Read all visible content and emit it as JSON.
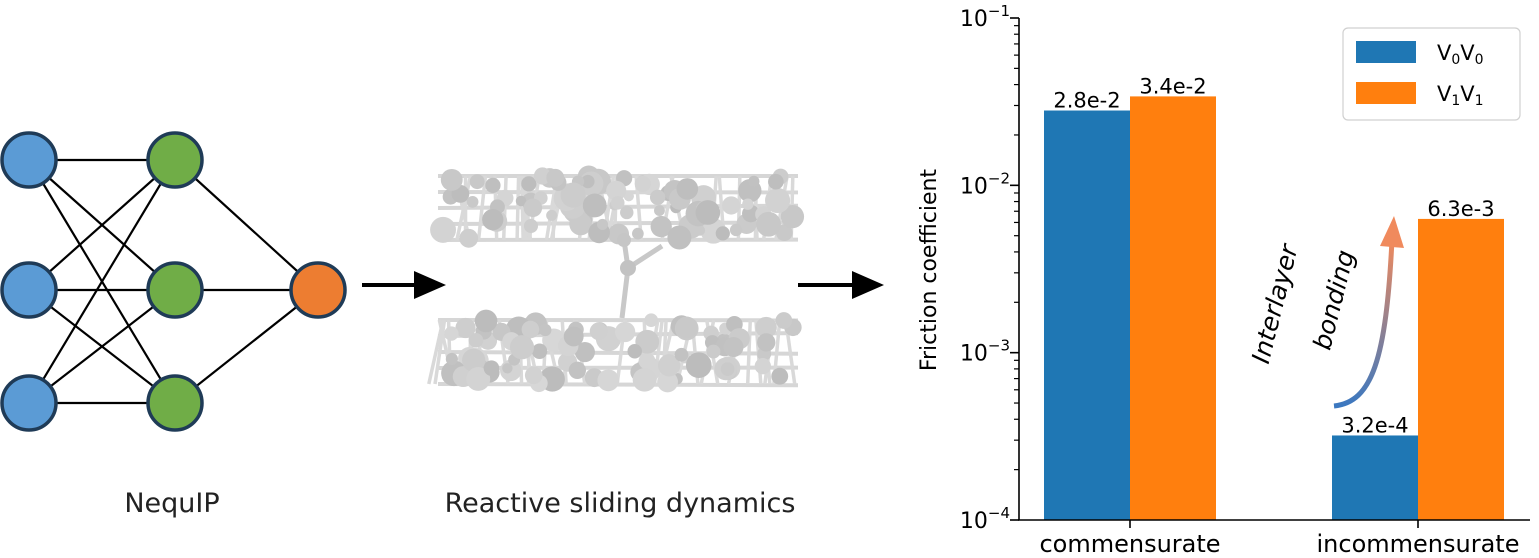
{
  "network": {
    "caption": "NequIP",
    "layers": [
      3,
      3,
      1
    ],
    "colors": {
      "input": "#5b9bd5",
      "hidden": "#70ad47",
      "output": "#ed7d31",
      "stroke": "#1f3b57"
    }
  },
  "simulation": {
    "caption": "Reactive sliding dynamics"
  },
  "annotation": {
    "line1": "Interlayer",
    "line2": "bonding"
  },
  "chart_data": {
    "type": "bar",
    "log_scale": true,
    "categories": [
      "commensurate",
      "incommensurate"
    ],
    "series": [
      {
        "name": "V0V0",
        "name_main": "V",
        "name_sub": "0",
        "color": "#1f77b4",
        "values": [
          0.028,
          0.00032
        ],
        "labels": [
          "2.8e-2",
          "3.2e-4"
        ]
      },
      {
        "name": "V1V1",
        "name_main": "V",
        "name_sub": "1",
        "color": "#ff7f0e",
        "values": [
          0.034,
          0.0063
        ],
        "labels": [
          "3.4e-2",
          "6.3e-3"
        ]
      }
    ],
    "ylabel": "Friction coefficient",
    "xlabel": "",
    "ylim": [
      0.0001,
      0.1
    ],
    "yticks": [
      {
        "base": "10",
        "exp": "−4"
      },
      {
        "base": "10",
        "exp": "−3"
      },
      {
        "base": "10",
        "exp": "−2"
      },
      {
        "base": "10",
        "exp": "−1"
      }
    ],
    "legend_position": "top-right",
    "grid": false
  }
}
